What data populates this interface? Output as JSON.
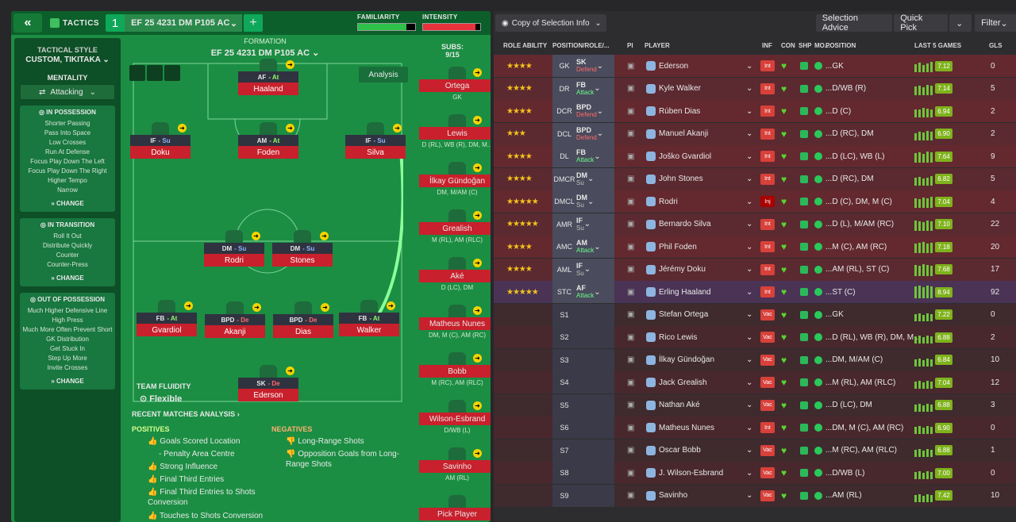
{
  "topbar": {
    "tactics_label": "TACTICS",
    "tactic_number": "1",
    "tactic_name": "EF 25 4231  DM P105 AC",
    "familiarity_label": "FAMILIARITY",
    "intensity_label": "INTENSITY",
    "familiarity_pct": 0.85,
    "intensity_pct": 0.92
  },
  "sidebar": {
    "style_title": "TACTICAL STYLE",
    "style_value": "CUSTOM, TIKITAKA",
    "mentality_label": "MENTALITY",
    "mentality_value": "Attacking",
    "in_possession": {
      "title": "IN POSSESSION",
      "items": [
        "Shorter Passing",
        "Pass Into Space",
        "Low Crosses",
        "Run At Defense",
        "Focus Play Down The Left",
        "Focus Play Down The Right",
        "Higher Tempo",
        "Narrow"
      ],
      "change": "CHANGE"
    },
    "in_transition": {
      "title": "IN TRANSITION",
      "items": [
        "Roll It Out",
        "Distribute Quickly",
        "Counter",
        "Counter-Press"
      ],
      "change": "CHANGE"
    },
    "out_possession": {
      "title": "OUT OF POSSESSION",
      "items": [
        "Much Higher Defensive Line",
        "High Press",
        "Much More Often Prevent Short GK Distribution",
        "Get Stuck In",
        "Step Up More",
        "Invite Crosses"
      ],
      "change": "CHANGE"
    }
  },
  "formation": {
    "label": "FORMATION",
    "name": "EF 25 4231  DM P105 AC",
    "analysis": "Analysis",
    "subs_label": "SUBS:",
    "subs_count": "9/15"
  },
  "pitch_players": [
    {
      "role": "AF",
      "duty": "At",
      "name": "Haaland"
    },
    {
      "role": "IF",
      "duty": "Su",
      "name": "Doku"
    },
    {
      "role": "AM",
      "duty": "At",
      "name": "Foden"
    },
    {
      "role": "IF",
      "duty": "Su",
      "name": "Silva"
    },
    {
      "role": "DM",
      "duty": "Su",
      "name": "Rodri"
    },
    {
      "role": "DM",
      "duty": "Su",
      "name": "Stones"
    },
    {
      "role": "FB",
      "duty": "At",
      "name": "Gvardiol"
    },
    {
      "role": "BPD",
      "duty": "De",
      "name": "Akanji"
    },
    {
      "role": "BPD",
      "duty": "De",
      "name": "Dias"
    },
    {
      "role": "FB",
      "duty": "At",
      "name": "Walker"
    },
    {
      "role": "SK",
      "duty": "De",
      "name": "Ederson"
    }
  ],
  "subs": [
    {
      "name": "Ortega",
      "pos": "GK"
    },
    {
      "name": "Lewis",
      "pos": "D (RL), WB (R), DM, M..."
    },
    {
      "name": "İlkay Gündoğan",
      "pos": "DM, M/AM (C)"
    },
    {
      "name": "Grealish",
      "pos": "M (RL), AM (RLC)"
    },
    {
      "name": "Aké",
      "pos": "D (LC), DM"
    },
    {
      "name": "Matheus Nunes",
      "pos": "DM, M (C), AM (RC)"
    },
    {
      "name": "Bobb",
      "pos": "M (RC), AM (RLC)"
    },
    {
      "name": "Wilson-Esbrand",
      "pos": "D/WB (L)"
    },
    {
      "name": "Savinho",
      "pos": "AM (RL)"
    },
    {
      "name": "Pick Player",
      "pos": ""
    }
  ],
  "fluidity": {
    "label": "TEAM FLUIDITY",
    "value": "Flexible"
  },
  "analysis": {
    "recent_label": "RECENT MATCHES ANALYSIS",
    "positives_label": "POSITIVES",
    "negatives_label": "NEGATIVES",
    "positives": [
      "Goals Scored Location",
      "- Penalty Area Centre",
      "Strong Influence",
      "Final Third Entries",
      "Final Third Entries to Shots Conversion",
      "Touches to Shots Conversion"
    ],
    "negatives": [
      "Long-Range Shots",
      "Opposition Goals from Long-Range Shots"
    ]
  },
  "right_toolbar": {
    "copy": "Copy of Selection Info",
    "selection_advice": "Selection Advice",
    "quick_pick": "Quick Pick",
    "filter": "Filter"
  },
  "columns": [
    "ROLE ABILITY",
    "POSITION/ROLE/...",
    "PI",
    "PLAYER",
    "INF",
    "CON",
    "SHP",
    "MO...",
    "POSITION",
    "LAST 5 GAMES",
    "GLS"
  ],
  "rows": [
    {
      "stars": "★★★★",
      "pos": "GK",
      "role": "SK",
      "duty": "Defend",
      "player": "Ederson",
      "inf": "Int",
      "position": "...GK",
      "rating": "7.12",
      "gls": "0"
    },
    {
      "stars": "★★★★",
      "pos": "DR",
      "role": "FB",
      "duty": "Attack",
      "player": "Kyle Walker",
      "inf": "Int",
      "position": "...D/WB (R)",
      "rating": "7.14",
      "gls": "5"
    },
    {
      "stars": "★★★★",
      "pos": "DCR",
      "role": "BPD",
      "duty": "Defend",
      "player": "Rúben Dias",
      "inf": "Int",
      "position": "...D (C)",
      "rating": "6.94",
      "gls": "2"
    },
    {
      "stars": "★★★",
      "pos": "DCL",
      "role": "BPD",
      "duty": "Defend",
      "player": "Manuel Akanji",
      "inf": "Int",
      "position": "...D (RC), DM",
      "rating": "6.90",
      "gls": "2"
    },
    {
      "stars": "★★★★",
      "pos": "DL",
      "role": "FB",
      "duty": "Attack",
      "player": "Joško Gvardiol",
      "inf": "Int",
      "position": "...D (LC), WB (L)",
      "rating": "7.64",
      "gls": "9"
    },
    {
      "stars": "★★★★",
      "pos": "DMCR",
      "role": "DM",
      "duty": "Su",
      "player": "John Stones",
      "inf": "Int",
      "position": "...D (RC), DM",
      "rating": "6.82",
      "gls": "5"
    },
    {
      "stars": "★★★★★",
      "pos": "DMCL",
      "role": "DM",
      "duty": "Su",
      "player": "Rodri",
      "inf": "Inj",
      "position": "...D (C), DM, M (C)",
      "rating": "7.04",
      "gls": "4"
    },
    {
      "stars": "★★★★★",
      "pos": "AMR",
      "role": "IF",
      "duty": "Su",
      "player": "Bernardo Silva",
      "inf": "Int",
      "position": "...D (L), M/AM (RC)",
      "rating": "7.10",
      "gls": "22"
    },
    {
      "stars": "★★★★",
      "pos": "AMC",
      "role": "AM",
      "duty": "Attack",
      "player": "Phil Foden",
      "inf": "Int",
      "position": "...M (C), AM (RC)",
      "rating": "7.18",
      "gls": "20"
    },
    {
      "stars": "★★★★",
      "pos": "AML",
      "role": "IF",
      "duty": "Su",
      "player": "Jérémy Doku",
      "inf": "Int",
      "position": "...AM (RL), ST (C)",
      "rating": "7.68",
      "gls": "17"
    },
    {
      "stars": "★★★★★",
      "pos": "STC",
      "role": "AF",
      "duty": "Attack",
      "player": "Erling Haaland",
      "inf": "Int",
      "position": "...ST (C)",
      "rating": "8.94",
      "gls": "92"
    },
    {
      "stars": "",
      "pos": "S1",
      "role": "",
      "duty": "",
      "player": "Stefan Ortega",
      "inf": "Vac",
      "position": "...GK",
      "rating": "7.22",
      "gls": "0"
    },
    {
      "stars": "",
      "pos": "S2",
      "role": "",
      "duty": "",
      "player": "Rico Lewis",
      "inf": "Vac",
      "position": "...D (RL), WB (R), DM, M...",
      "rating": "6.88",
      "gls": "2"
    },
    {
      "stars": "",
      "pos": "S3",
      "role": "",
      "duty": "",
      "player": "İlkay Gündoğan",
      "inf": "Vac",
      "position": "...DM, M/AM (C)",
      "rating": "6.84",
      "gls": "10"
    },
    {
      "stars": "",
      "pos": "S4",
      "role": "",
      "duty": "",
      "player": "Jack Grealish",
      "inf": "Vac",
      "position": "...M (RL), AM (RLC)",
      "rating": "7.04",
      "gls": "12"
    },
    {
      "stars": "",
      "pos": "S5",
      "role": "",
      "duty": "",
      "player": "Nathan Aké",
      "inf": "Vac",
      "position": "...D (LC), DM",
      "rating": "6.88",
      "gls": "3"
    },
    {
      "stars": "",
      "pos": "S6",
      "role": "",
      "duty": "",
      "player": "Matheus Nunes",
      "inf": "Int",
      "position": "...DM, M (C), AM (RC)",
      "rating": "6.90",
      "gls": "0"
    },
    {
      "stars": "",
      "pos": "S7",
      "role": "",
      "duty": "",
      "player": "Oscar Bobb",
      "inf": "Vac",
      "position": "...M (RC), AM (RLC)",
      "rating": "6.88",
      "gls": "1"
    },
    {
      "stars": "",
      "pos": "S8",
      "role": "",
      "duty": "",
      "player": "J. Wilson-Esbrand",
      "inf": "Vac",
      "position": "...D/WB (L)",
      "rating": "7.00",
      "gls": "0"
    },
    {
      "stars": "",
      "pos": "S9",
      "role": "",
      "duty": "",
      "player": "Savinho",
      "inf": "Vac",
      "position": "...AM (RL)",
      "rating": "7.42",
      "gls": "10"
    }
  ]
}
